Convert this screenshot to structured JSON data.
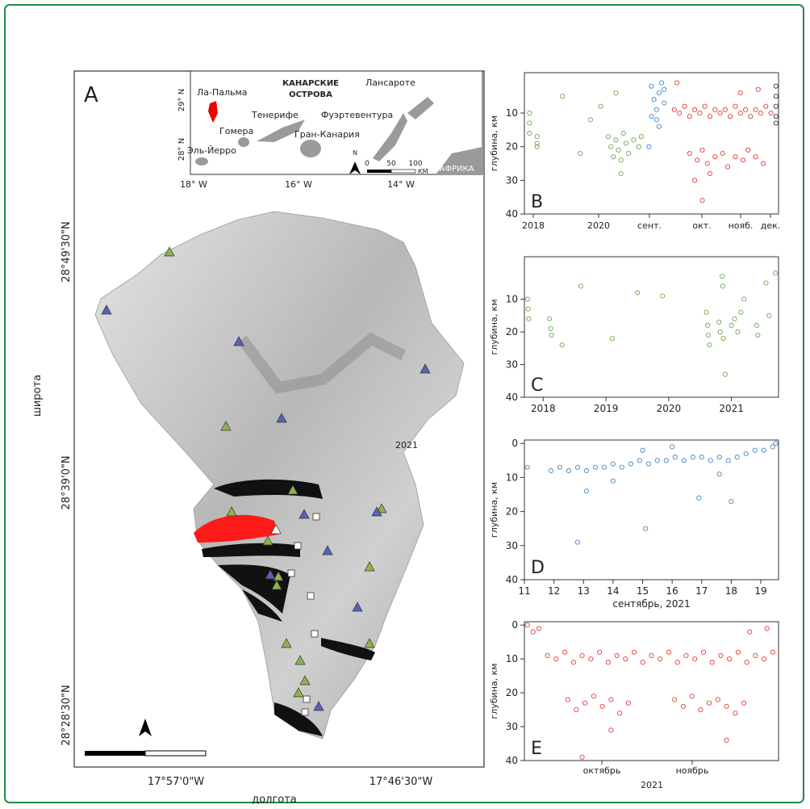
{
  "map": {
    "panel_label": "A",
    "inset": {
      "islands": [
        "Ла-Пальма",
        "Тенерифе",
        "Гомера",
        "Эль-Йерро",
        "Гран-Канария",
        "Фуэртевентура",
        "Лансароте"
      ],
      "region_title": [
        "КАНАРСКИЕ",
        "ОСТРОВА"
      ],
      "africa": "АФРИКА",
      "lat_ticks": [
        "29° N",
        "28° N"
      ],
      "lon_ticks": [
        "18° W",
        "16° W",
        "14° W"
      ],
      "scale_labels": [
        "0",
        "50",
        "100"
      ],
      "scale_unit": "КМ",
      "north": "N"
    },
    "lat_labels": [
      "28°49'30\"N",
      "28°39'0\"N",
      "28°28'30\"N"
    ],
    "lon_labels": [
      "17°57'0\"W",
      "17°46'30\"W"
    ],
    "y_title": "широта",
    "x_title": "долгота",
    "year_note": "2021"
  },
  "panels": [
    {
      "label": "B",
      "y_title": "глубина, км",
      "ylim": [
        -2,
        40
      ],
      "yticks": [
        10,
        20,
        30,
        40
      ],
      "xlim": [
        0,
        1
      ],
      "x_labels": [
        "2018",
        "2020",
        "сент.",
        "окт.",
        "нояб.",
        "дек."
      ],
      "series": [
        {
          "color": "#6aa84f",
          "points": [
            [
              0.02,
              10
            ],
            [
              0.02,
              13
            ],
            [
              0.02,
              16
            ],
            [
              0.05,
              17
            ],
            [
              0.05,
              19
            ],
            [
              0.05,
              20
            ],
            [
              0.15,
              5
            ],
            [
              0.22,
              22
            ],
            [
              0.3,
              8
            ],
            [
              0.33,
              17
            ],
            [
              0.34,
              20
            ],
            [
              0.35,
              23
            ],
            [
              0.36,
              4
            ],
            [
              0.36,
              18
            ],
            [
              0.37,
              21
            ],
            [
              0.38,
              24
            ],
            [
              0.39,
              16
            ],
            [
              0.4,
              19
            ],
            [
              0.41,
              22
            ],
            [
              0.43,
              18
            ],
            [
              0.45,
              20
            ],
            [
              0.46,
              17
            ],
            [
              0.38,
              28
            ],
            [
              0.26,
              12
            ]
          ]
        },
        {
          "color": "#3d85c6",
          "points": [
            [
              0.5,
              2
            ],
            [
              0.51,
              6
            ],
            [
              0.52,
              9
            ],
            [
              0.52,
              12
            ],
            [
              0.53,
              4
            ],
            [
              0.53,
              14
            ],
            [
              0.54,
              1
            ],
            [
              0.55,
              7
            ],
            [
              0.5,
              11
            ],
            [
              0.55,
              3
            ],
            [
              0.49,
              20
            ]
          ]
        },
        {
          "color": "#e53935",
          "points": [
            [
              0.59,
              9
            ],
            [
              0.61,
              10
            ],
            [
              0.63,
              8
            ],
            [
              0.65,
              11
            ],
            [
              0.67,
              9
            ],
            [
              0.69,
              10
            ],
            [
              0.71,
              8
            ],
            [
              0.73,
              11
            ],
            [
              0.75,
              9
            ],
            [
              0.77,
              10
            ],
            [
              0.79,
              9
            ],
            [
              0.81,
              11
            ],
            [
              0.83,
              8
            ],
            [
              0.85,
              10
            ],
            [
              0.87,
              9
            ],
            [
              0.89,
              11
            ],
            [
              0.91,
              9
            ],
            [
              0.93,
              10
            ],
            [
              0.95,
              8
            ],
            [
              0.97,
              10
            ],
            [
              0.65,
              22
            ],
            [
              0.68,
              24
            ],
            [
              0.7,
              21
            ],
            [
              0.72,
              25
            ],
            [
              0.75,
              23
            ],
            [
              0.78,
              22
            ],
            [
              0.8,
              26
            ],
            [
              0.83,
              23
            ],
            [
              0.86,
              24
            ],
            [
              0.88,
              21
            ],
            [
              0.91,
              23
            ],
            [
              0.94,
              25
            ],
            [
              0.67,
              30
            ],
            [
              0.7,
              36
            ],
            [
              0.73,
              28
            ],
            [
              0.85,
              4
            ],
            [
              0.92,
              3
            ],
            [
              0.6,
              1
            ]
          ]
        },
        {
          "color": "#333333",
          "points": [
            [
              0.99,
              5
            ],
            [
              0.99,
              8
            ],
            [
              0.99,
              11
            ],
            [
              0.99,
              13
            ],
            [
              0.99,
              2
            ]
          ]
        }
      ]
    },
    {
      "label": "C",
      "y_title": "глубина, км",
      "ylim": [
        -3,
        40
      ],
      "yticks": [
        10,
        20,
        30,
        40
      ],
      "xlim": [
        2017.7,
        2021.75
      ],
      "xticks": [
        2018,
        2019,
        2020,
        2021
      ],
      "series": [
        {
          "color": "#6aa84f",
          "points": [
            [
              2017.75,
              10
            ],
            [
              2017.76,
              13
            ],
            [
              2017.77,
              16
            ],
            [
              2018.1,
              16
            ],
            [
              2018.12,
              19
            ],
            [
              2018.13,
              21
            ],
            [
              2018.3,
              24
            ],
            [
              2018.6,
              6
            ],
            [
              2019.1,
              22
            ],
            [
              2019.5,
              8
            ],
            [
              2019.9,
              9
            ],
            [
              2020.6,
              14
            ],
            [
              2020.62,
              18
            ],
            [
              2020.63,
              21
            ],
            [
              2020.65,
              24
            ],
            [
              2020.8,
              17
            ],
            [
              2020.82,
              20
            ],
            [
              2020.85,
              3
            ],
            [
              2020.86,
              6
            ],
            [
              2020.87,
              22
            ],
            [
              2020.9,
              33
            ],
            [
              2021,
              18
            ],
            [
              2021.05,
              16
            ],
            [
              2021.1,
              20
            ],
            [
              2021.15,
              14
            ],
            [
              2021.2,
              10
            ],
            [
              2021.4,
              18
            ],
            [
              2021.42,
              21
            ],
            [
              2021.55,
              5
            ],
            [
              2021.6,
              15
            ],
            [
              2021.7,
              2
            ]
          ]
        }
      ]
    },
    {
      "label": "D",
      "y_title": "глубина, км",
      "ylim": [
        -1,
        40
      ],
      "yticks": [
        0,
        10,
        20,
        30,
        40
      ],
      "xlim": [
        11,
        19.6
      ],
      "xticks": [
        11,
        12,
        13,
        14,
        15,
        16,
        17,
        18,
        19
      ],
      "x_title": "сентябрь, 2021",
      "series": [
        {
          "color": "#3d85c6",
          "points": [
            [
              11.1,
              7
            ],
            [
              11.9,
              8
            ],
            [
              12.2,
              7
            ],
            [
              12.5,
              8
            ],
            [
              12.8,
              7
            ],
            [
              13.1,
              8
            ],
            [
              13.4,
              7
            ],
            [
              13.7,
              7
            ],
            [
              14,
              6
            ],
            [
              14.3,
              7
            ],
            [
              14.6,
              6
            ],
            [
              14.9,
              5
            ],
            [
              15.2,
              6
            ],
            [
              15.5,
              5
            ],
            [
              15.8,
              5
            ],
            [
              16.1,
              4
            ],
            [
              16.4,
              5
            ],
            [
              16.7,
              4
            ],
            [
              17,
              4
            ],
            [
              17.3,
              5
            ],
            [
              17.6,
              4
            ],
            [
              17.9,
              5
            ],
            [
              18.2,
              4
            ],
            [
              18.5,
              3
            ],
            [
              18.8,
              2
            ],
            [
              19.1,
              2
            ],
            [
              19.4,
              1
            ],
            [
              19.5,
              0
            ],
            [
              15,
              2
            ],
            [
              16,
              1
            ],
            [
              14,
              11
            ],
            [
              15.1,
              25
            ],
            [
              12.8,
              29
            ],
            [
              13.1,
              14
            ],
            [
              16.9,
              16
            ],
            [
              18,
              17
            ],
            [
              17.6,
              9
            ]
          ]
        }
      ]
    },
    {
      "label": "E",
      "y_title": "глубина, км",
      "ylim": [
        -1,
        40
      ],
      "yticks": [
        0,
        10,
        20,
        30,
        40
      ],
      "xlim": [
        0,
        88
      ],
      "x_labels": [
        "октябрь",
        "ноябрь",
        "2021"
      ],
      "series": [
        {
          "color": "#e53935",
          "points": [
            [
              1,
              0
            ],
            [
              3,
              2
            ],
            [
              5,
              1
            ],
            [
              8,
              9
            ],
            [
              11,
              10
            ],
            [
              14,
              8
            ],
            [
              17,
              11
            ],
            [
              20,
              9
            ],
            [
              23,
              10
            ],
            [
              26,
              8
            ],
            [
              29,
              11
            ],
            [
              32,
              9
            ],
            [
              35,
              10
            ],
            [
              38,
              8
            ],
            [
              41,
              11
            ],
            [
              44,
              9
            ],
            [
              47,
              10
            ],
            [
              50,
              8
            ],
            [
              53,
              11
            ],
            [
              56,
              9
            ],
            [
              59,
              10
            ],
            [
              62,
              8
            ],
            [
              65,
              11
            ],
            [
              68,
              9
            ],
            [
              71,
              10
            ],
            [
              74,
              8
            ],
            [
              77,
              11
            ],
            [
              80,
              9
            ],
            [
              83,
              10
            ],
            [
              86,
              8
            ],
            [
              15,
              22
            ],
            [
              18,
              25
            ],
            [
              21,
              23
            ],
            [
              24,
              21
            ],
            [
              27,
              24
            ],
            [
              30,
              22
            ],
            [
              33,
              26
            ],
            [
              36,
              23
            ],
            [
              52,
              22
            ],
            [
              55,
              24
            ],
            [
              58,
              21
            ],
            [
              61,
              25
            ],
            [
              64,
              23
            ],
            [
              67,
              22
            ],
            [
              70,
              24
            ],
            [
              73,
              26
            ],
            [
              76,
              23
            ],
            [
              20,
              39
            ],
            [
              30,
              31
            ],
            [
              78,
              2
            ],
            [
              84,
              1
            ],
            [
              70,
              34
            ]
          ]
        }
      ]
    }
  ]
}
